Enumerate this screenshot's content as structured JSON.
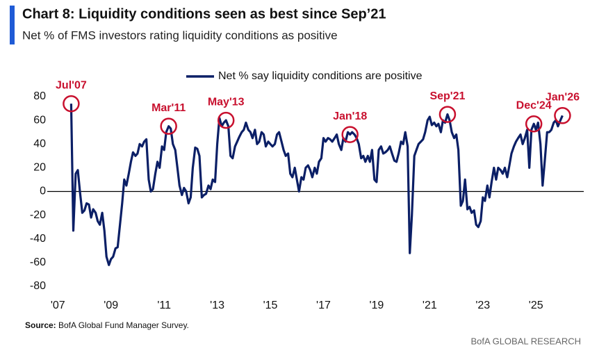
{
  "chart_data": {
    "type": "line",
    "title": "Chart 8: Liquidity conditions seen as best since Sep’21",
    "subtitle": "Net % of FMS investors rating liquidity conditions as positive",
    "source_label": "Source:",
    "source_text": "BofA Global Fund Manager Survey.",
    "footer": "BofA GLOBAL RESEARCH",
    "legend": "top",
    "x": [
      2007.5,
      2007.58,
      2007.67,
      2007.75,
      2007.83,
      2007.92,
      2008.0,
      2008.08,
      2008.17,
      2008.25,
      2008.33,
      2008.42,
      2008.5,
      2008.58,
      2008.67,
      2008.75,
      2008.83,
      2008.92,
      2009.0,
      2009.08,
      2009.17,
      2009.25,
      2009.33,
      2009.42,
      2009.5,
      2009.58,
      2009.67,
      2009.75,
      2009.83,
      2009.92,
      2010.0,
      2010.08,
      2010.17,
      2010.25,
      2010.33,
      2010.42,
      2010.5,
      2010.58,
      2010.67,
      2010.75,
      2010.83,
      2010.92,
      2011.0,
      2011.08,
      2011.17,
      2011.25,
      2011.33,
      2011.42,
      2011.5,
      2011.58,
      2011.67,
      2011.75,
      2011.83,
      2011.92,
      2012.0,
      2012.08,
      2012.17,
      2012.25,
      2012.33,
      2012.42,
      2012.5,
      2012.58,
      2012.67,
      2012.75,
      2012.83,
      2012.92,
      2013.0,
      2013.08,
      2013.17,
      2013.25,
      2013.33,
      2013.42,
      2013.5,
      2013.58,
      2013.67,
      2013.75,
      2013.83,
      2013.92,
      2014.0,
      2014.08,
      2014.17,
      2014.25,
      2014.33,
      2014.42,
      2014.5,
      2014.58,
      2014.67,
      2014.75,
      2014.83,
      2014.92,
      2015.0,
      2015.08,
      2015.17,
      2015.25,
      2015.33,
      2015.42,
      2015.5,
      2015.58,
      2015.67,
      2015.75,
      2015.83,
      2015.92,
      2016.0,
      2016.08,
      2016.17,
      2016.25,
      2016.33,
      2016.42,
      2016.5,
      2016.58,
      2016.67,
      2016.75,
      2016.83,
      2016.92,
      2017.0,
      2017.08,
      2017.17,
      2017.25,
      2017.33,
      2017.42,
      2017.5,
      2017.58,
      2017.67,
      2017.75,
      2017.83,
      2017.92,
      2018.0,
      2018.08,
      2018.17,
      2018.25,
      2018.33,
      2018.42,
      2018.5,
      2018.58,
      2018.67,
      2018.75,
      2018.83,
      2018.92,
      2019.0,
      2019.08,
      2019.17,
      2019.25,
      2019.33,
      2019.42,
      2019.5,
      2019.58,
      2019.67,
      2019.75,
      2019.83,
      2019.92,
      2020.0,
      2020.08,
      2020.17,
      2020.25,
      2020.33,
      2020.42,
      2020.5,
      2020.58,
      2020.67,
      2020.75,
      2020.83,
      2020.92,
      2021.0,
      2021.08,
      2021.17,
      2021.25,
      2021.33,
      2021.42,
      2021.5,
      2021.58,
      2021.67,
      2021.75,
      2021.83,
      2021.92,
      2022.0,
      2022.08,
      2022.17,
      2022.25,
      2022.33,
      2022.42,
      2022.5,
      2022.58,
      2022.67,
      2022.75,
      2022.83,
      2022.92,
      2023.0,
      2023.08,
      2023.17,
      2023.25,
      2023.33,
      2023.42,
      2023.5,
      2023.58,
      2023.67,
      2023.75,
      2023.83,
      2023.92,
      2024.0,
      2024.08,
      2024.17,
      2024.25,
      2024.33,
      2024.42,
      2024.5,
      2024.58,
      2024.67,
      2024.75,
      2024.83,
      2024.92,
      2025.0,
      2025.08,
      2025.17,
      2025.25,
      2025.33,
      2025.42,
      2025.5,
      2025.58,
      2025.67,
      2025.75,
      2025.83,
      2025.92,
      2026.0
    ],
    "series": [
      {
        "name": "Net % say liquidity conditions are positive",
        "color": "#0b1f66",
        "values": [
          74,
          -33,
          15,
          18,
          0,
          -18,
          -16,
          -10,
          -11,
          -22,
          -15,
          -18,
          -25,
          -28,
          -18,
          -33,
          -55,
          -62,
          -57,
          -55,
          -48,
          -47,
          -30,
          -10,
          10,
          5,
          15,
          25,
          33,
          30,
          32,
          40,
          38,
          42,
          44,
          10,
          0,
          2,
          15,
          25,
          20,
          38,
          35,
          50,
          55,
          53,
          40,
          35,
          20,
          5,
          -3,
          3,
          0,
          -10,
          -5,
          20,
          37,
          36,
          30,
          -5,
          -3,
          -2,
          5,
          2,
          10,
          8,
          40,
          62,
          55,
          58,
          60,
          55,
          30,
          28,
          38,
          42,
          46,
          50,
          52,
          58,
          52,
          50,
          45,
          52,
          40,
          42,
          50,
          48,
          38,
          42,
          40,
          38,
          40,
          48,
          50,
          42,
          35,
          30,
          32,
          15,
          12,
          20,
          10,
          0,
          12,
          10,
          20,
          22,
          18,
          12,
          20,
          15,
          25,
          28,
          45,
          42,
          45,
          44,
          42,
          45,
          48,
          40,
          35,
          45,
          42,
          50,
          48,
          50,
          48,
          45,
          40,
          28,
          30,
          25,
          30,
          25,
          35,
          10,
          8,
          35,
          38,
          32,
          33,
          35,
          38,
          32,
          26,
          25,
          32,
          42,
          40,
          50,
          38,
          -52,
          -20,
          30,
          35,
          40,
          42,
          44,
          50,
          60,
          63,
          56,
          58,
          55,
          57,
          50,
          60,
          58,
          65,
          60,
          50,
          45,
          48,
          35,
          -12,
          -8,
          10,
          -15,
          -13,
          -18,
          -16,
          -28,
          -30,
          -25,
          -5,
          -8,
          5,
          -5,
          8,
          20,
          10,
          20,
          18,
          15,
          20,
          12,
          22,
          32,
          38,
          42,
          45,
          48,
          40,
          45,
          52,
          20,
          52,
          57,
          52,
          58,
          40,
          5,
          25,
          50,
          50,
          52,
          58,
          60,
          55,
          60,
          64
        ]
      }
    ],
    "annotations": [
      {
        "text": "Jul'07",
        "x": 2007.5,
        "y": 74
      },
      {
        "text": "Mar'11",
        "x": 2011.17,
        "y": 55
      },
      {
        "text": "May'13",
        "x": 2013.33,
        "y": 60
      },
      {
        "text": "Jan'18",
        "x": 2018.0,
        "y": 48
      },
      {
        "text": "Sep'21",
        "x": 2021.67,
        "y": 65
      },
      {
        "text": "Dec'24",
        "x": 2024.92,
        "y": 57
      },
      {
        "text": "Jan'26",
        "x": 2026.0,
        "y": 64
      }
    ],
    "annotation_color": "#c8102e",
    "xlim": [
      2006.6,
      2026.8
    ],
    "xticks": [
      {
        "value": 2007,
        "label": "'07"
      },
      {
        "value": 2009,
        "label": "'09"
      },
      {
        "value": 2011,
        "label": "'11"
      },
      {
        "value": 2013,
        "label": "'13"
      },
      {
        "value": 2015,
        "label": "'15"
      },
      {
        "value": 2017,
        "label": "'17"
      },
      {
        "value": 2019,
        "label": "'19"
      },
      {
        "value": 2021,
        "label": "'21"
      },
      {
        "value": 2023,
        "label": "'23"
      },
      {
        "value": 2025,
        "label": "'25"
      }
    ],
    "ylim": [
      -80,
      80
    ],
    "yticks": [
      -80,
      -60,
      -40,
      -20,
      0,
      20,
      40,
      60,
      80
    ],
    "grid": false
  }
}
